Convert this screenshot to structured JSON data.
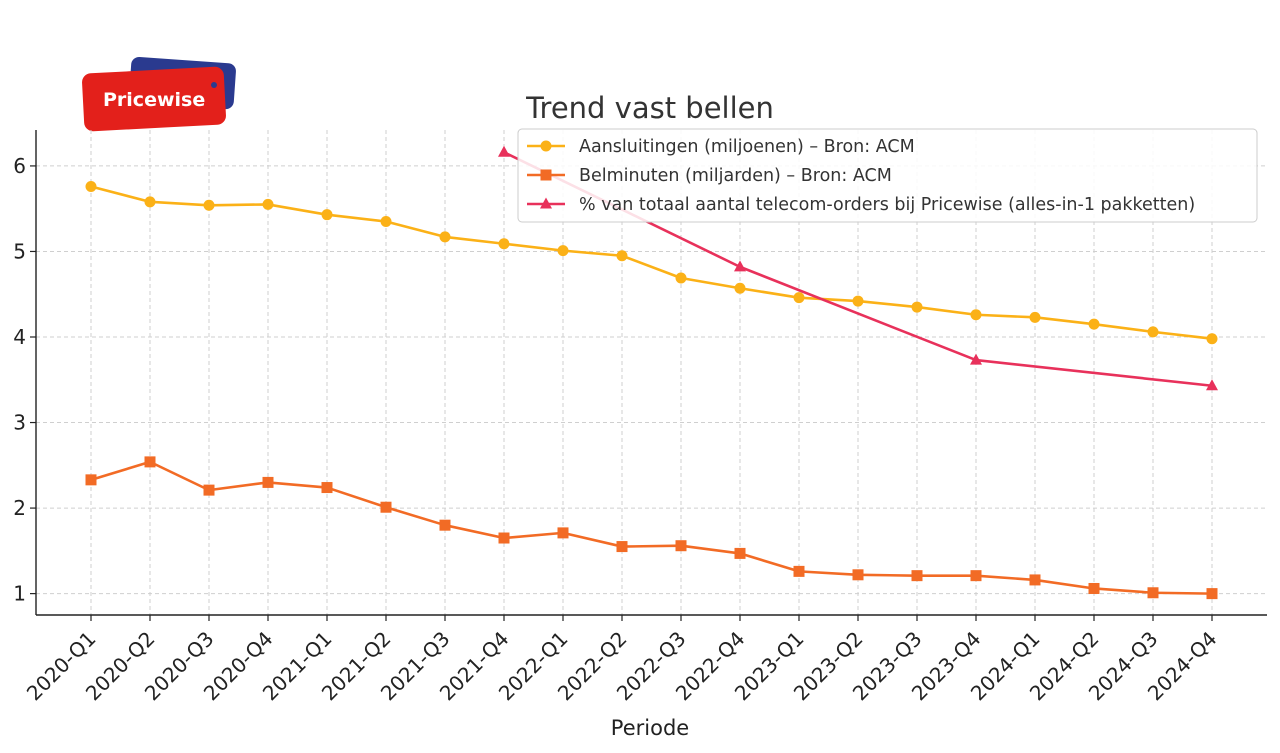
{
  "logo": {
    "text": "Pricewise"
  },
  "chart_data": {
    "type": "line",
    "title": "Trend vast bellen",
    "xlabel": "Periode",
    "ylabel": "",
    "categories": [
      "2020-Q1",
      "2020-Q2",
      "2020-Q3",
      "2020-Q4",
      "2021-Q1",
      "2021-Q2",
      "2021-Q3",
      "2021-Q4",
      "2022-Q1",
      "2022-Q2",
      "2022-Q3",
      "2022-Q4",
      "2023-Q1",
      "2023-Q2",
      "2023-Q3",
      "2023-Q4",
      "2024-Q1",
      "2024-Q2",
      "2024-Q3",
      "2024-Q4"
    ],
    "yticks": [
      1,
      2,
      3,
      4,
      5,
      6
    ],
    "ylim": [
      0.75,
      6.42
    ],
    "grid": true,
    "legend_position": "top-right",
    "series": [
      {
        "name": "Aansluitingen (miljoenen) – Bron: ACM",
        "color": "#FBB117",
        "marker": "circle",
        "values": [
          5.76,
          5.58,
          5.54,
          5.55,
          5.43,
          5.35,
          5.17,
          5.09,
          5.01,
          4.95,
          4.69,
          4.57,
          4.46,
          4.42,
          4.35,
          4.26,
          4.23,
          4.15,
          4.06,
          3.98
        ]
      },
      {
        "name": "Belminuten (miljarden) – Bron: ACM",
        "color": "#F26B25",
        "marker": "square",
        "values": [
          2.33,
          2.54,
          2.21,
          2.3,
          2.24,
          2.01,
          1.8,
          1.65,
          1.71,
          1.55,
          1.56,
          1.47,
          1.26,
          1.22,
          1.21,
          1.21,
          1.16,
          1.06,
          1.01,
          1.0
        ]
      },
      {
        "name": "% van totaal aantal telecom-orders bij Pricewise (alles-in-1 pakketten)",
        "color": "#E8315B",
        "marker": "triangle",
        "values": [
          null,
          null,
          null,
          null,
          null,
          null,
          null,
          6.16,
          null,
          null,
          null,
          4.82,
          null,
          null,
          null,
          3.73,
          null,
          null,
          null,
          3.43
        ]
      }
    ]
  }
}
